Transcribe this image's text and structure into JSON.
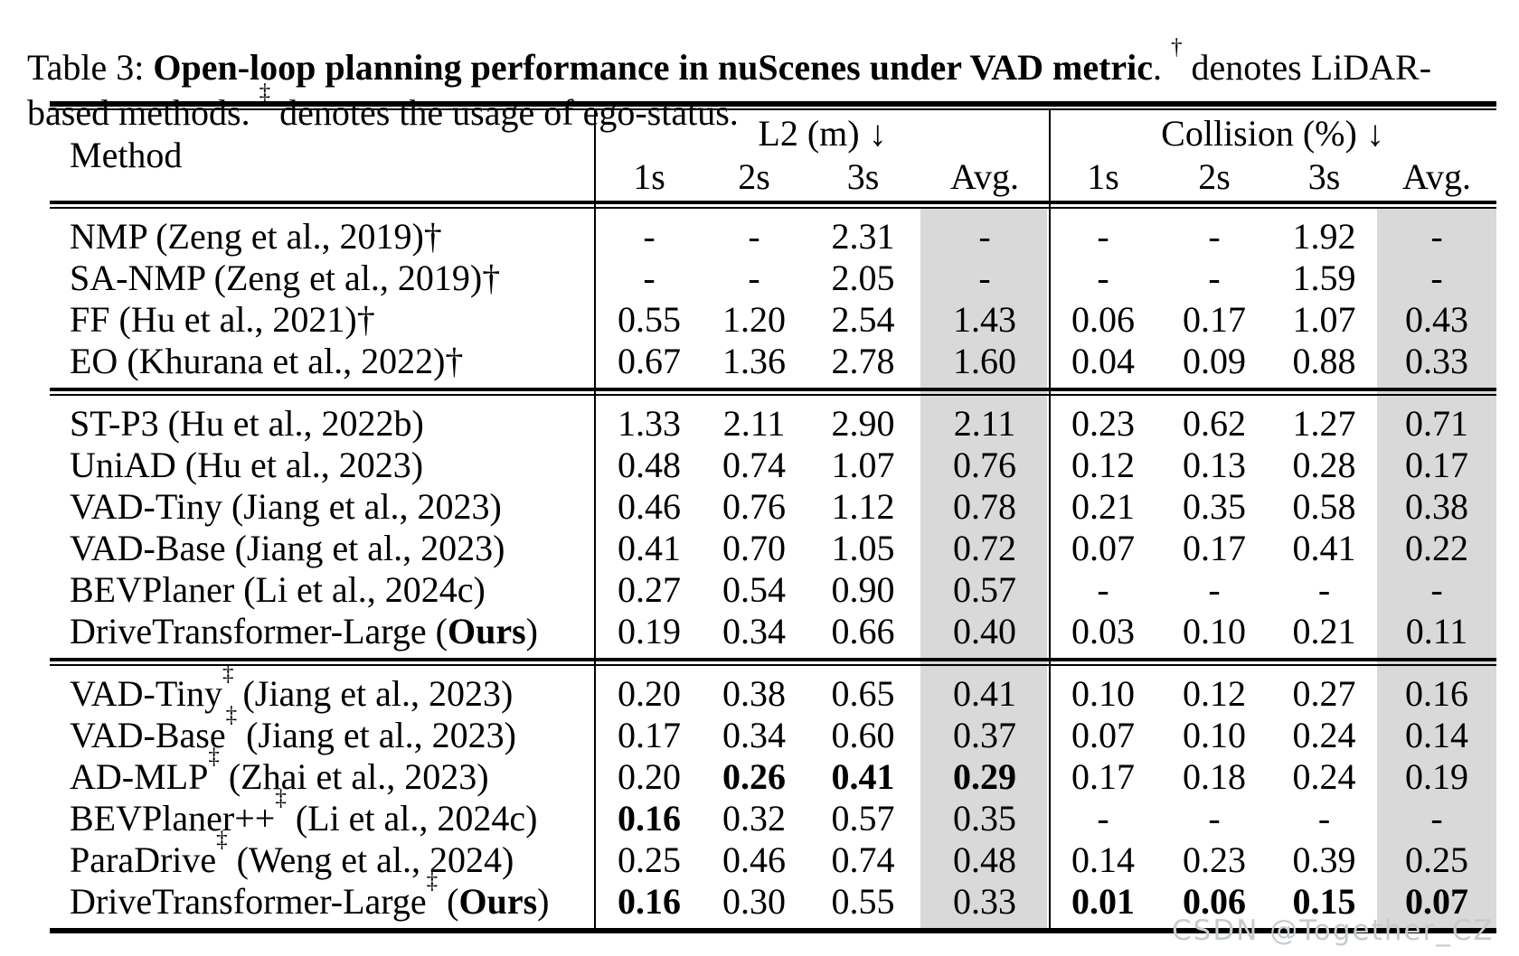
{
  "caption": {
    "line1_pre": "Table 3: ",
    "line1_bold": "Open-loop planning performance in nuScenes under VAD metric",
    "line1_mid": ". ",
    "line1_sup": "†",
    "line1_post": " denotes LiDAR-",
    "line2_pre": "based methods. ",
    "line2_sup": "‡",
    "line2_post": " denotes the usage of ego-status."
  },
  "header": {
    "method": "Method",
    "l2_group": "L2 (m) ↓",
    "collision_group": "Collision (%) ↓",
    "sub": [
      "1s",
      "2s",
      "3s",
      "Avg.",
      "1s",
      "2s",
      "3s",
      "Avg."
    ]
  },
  "groups": [
    {
      "rows": [
        {
          "p1": "NMP (Zeng et al., 2019)†",
          "l2": [
            "-",
            "-",
            "2.31",
            "-"
          ],
          "col": [
            "-",
            "-",
            "1.92",
            "-"
          ]
        },
        {
          "p1": "SA-NMP (Zeng et al., 2019)†",
          "l2": [
            "-",
            "-",
            "2.05",
            "-"
          ],
          "col": [
            "-",
            "-",
            "1.59",
            "-"
          ]
        },
        {
          "p1": "FF (Hu et al., 2021)†",
          "l2": [
            "0.55",
            "1.20",
            "2.54",
            "1.43"
          ],
          "col": [
            "0.06",
            "0.17",
            "1.07",
            "0.43"
          ]
        },
        {
          "p1": "EO (Khurana et al., 2022)†",
          "l2": [
            "0.67",
            "1.36",
            "2.78",
            "1.60"
          ],
          "col": [
            "0.04",
            "0.09",
            "0.88",
            "0.33"
          ]
        }
      ]
    },
    {
      "rows": [
        {
          "p1": "ST-P3 (Hu et al., 2022b)",
          "l2": [
            "1.33",
            "2.11",
            "2.90",
            "2.11"
          ],
          "col": [
            "0.23",
            "0.62",
            "1.27",
            "0.71"
          ]
        },
        {
          "p1": "UniAD (Hu et al., 2023)",
          "l2": [
            "0.48",
            "0.74",
            "1.07",
            "0.76"
          ],
          "col": [
            "0.12",
            "0.13",
            "0.28",
            "0.17"
          ]
        },
        {
          "p1": "VAD-Tiny (Jiang et al., 2023)",
          "l2": [
            "0.46",
            "0.76",
            "1.12",
            "0.78"
          ],
          "col": [
            "0.21",
            "0.35",
            "0.58",
            "0.38"
          ]
        },
        {
          "p1": "VAD-Base (Jiang et al., 2023)",
          "l2": [
            "0.41",
            "0.70",
            "1.05",
            "0.72"
          ],
          "col": [
            "0.07",
            "0.17",
            "0.41",
            "0.22"
          ]
        },
        {
          "p1": "BEVPlaner (Li et al., 2024c)",
          "l2": [
            "0.27",
            "0.54",
            "0.90",
            "0.57"
          ],
          "col": [
            "-",
            "-",
            "-",
            "-"
          ]
        },
        {
          "p1": "DriveTransformer-Large (",
          "b": "Ours",
          "p3": ")",
          "l2": [
            "0.19",
            "0.34",
            "0.66",
            "0.40"
          ],
          "col": [
            "0.03",
            "0.10",
            "0.21",
            "0.11"
          ]
        }
      ]
    },
    {
      "rows": [
        {
          "p1": "VAD-Tiny",
          "sup": "‡",
          "p2": " (Jiang et al., 2023)",
          "l2": [
            "0.20",
            "0.38",
            "0.65",
            "0.41"
          ],
          "col": [
            "0.10",
            "0.12",
            "0.27",
            "0.16"
          ]
        },
        {
          "p1": "VAD-Base",
          "sup": "‡",
          "p2": " (Jiang et al., 2023)",
          "l2": [
            "0.17",
            "0.34",
            "0.60",
            "0.37"
          ],
          "col": [
            "0.07",
            "0.10",
            "0.24",
            "0.14"
          ]
        },
        {
          "p1": "AD-MLP",
          "sup": "‡",
          "p2": " (Zhai et al., 2023)",
          "l2": [
            "0.20",
            "0.26",
            "0.41",
            "0.29"
          ],
          "col": [
            "0.17",
            "0.18",
            "0.24",
            "0.19"
          ]
        },
        {
          "p1": "BEVPlaner++",
          "sup": "‡",
          "p2": " (Li et al., 2024c)",
          "l2": [
            "0.16",
            "0.32",
            "0.57",
            "0.35"
          ],
          "col": [
            "-",
            "-",
            "-",
            "-"
          ]
        },
        {
          "p1": "ParaDrive",
          "sup": "‡",
          "p2": " (Weng et al., 2024)",
          "l2": [
            "0.25",
            "0.46",
            "0.74",
            "0.48"
          ],
          "col": [
            "0.14",
            "0.23",
            "0.39",
            "0.25"
          ]
        },
        {
          "p1": "DriveTransformer-Large",
          "sup": "‡",
          "p2": " (",
          "b": "Ours",
          "p3": ")",
          "l2": [
            "0.16",
            "0.30",
            "0.55",
            "0.33"
          ],
          "col": [
            "0.01",
            "0.06",
            "0.15",
            "0.07"
          ]
        }
      ]
    }
  ],
  "watermark": {
    "text": "CSDN @Together_CZ"
  },
  "colors": {
    "avg_shade": "#d9d9d9",
    "rule": "#000000",
    "watermark": "#c6cbce"
  }
}
